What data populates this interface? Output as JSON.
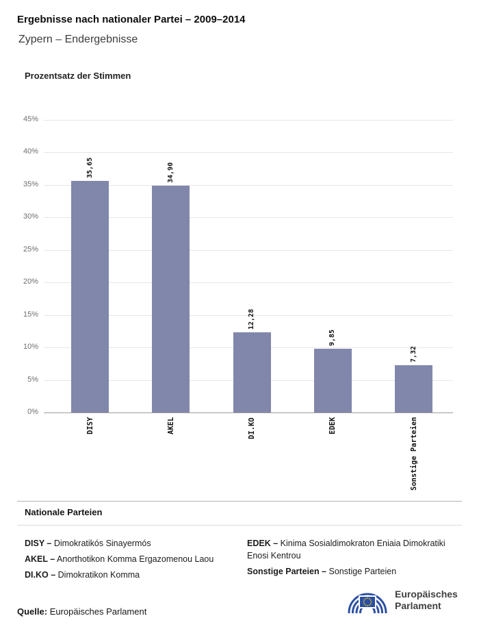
{
  "header": {
    "title": "Ergebnisse nach nationaler Partei – 2009–2014",
    "subtitle": "Zypern – Endergebnisse"
  },
  "chart_data": {
    "type": "bar",
    "title": "Prozentsatz der Stimmen",
    "ylabel": "Prozentsatz der Stimmen",
    "xlabel": "",
    "categories": [
      "DISY",
      "AKEL",
      "DI.KO",
      "EDEK",
      "Sonstige Parteien"
    ],
    "values": [
      35.65,
      34.9,
      12.28,
      9.85,
      7.32
    ],
    "value_labels": [
      "35,65",
      "34,90",
      "12,28",
      "9,85",
      "7,32"
    ],
    "ylim": [
      0,
      45
    ],
    "ytick_step": 5,
    "ytick_labels": [
      "0%",
      "5%",
      "10%",
      "15%",
      "20%",
      "25%",
      "30%",
      "35%",
      "40%",
      "45%"
    ],
    "grid": true,
    "legend_position": "none",
    "bar_color": "#8187ab"
  },
  "legend": {
    "heading": "Nationale Parteien",
    "columns": [
      [
        {
          "abbr": "DISY –",
          "name": "Dimokratikós Sinayermós"
        },
        {
          "abbr": "AKEL –",
          "name": "Anorthotikon Komma Ergazomenou Laou"
        },
        {
          "abbr": "DI.KO –",
          "name": "Dimokratikon Komma"
        }
      ],
      [
        {
          "abbr": "EDEK –",
          "name": "Kinima Sosialdimokraton Eniaia Dimokratiki Enosi Kentrou"
        },
        {
          "abbr": "Sonstige Parteien –",
          "name": "Sonstige Parteien"
        }
      ]
    ]
  },
  "footer": {
    "source_label": "Quelle:",
    "source_text": "Europäisches Parlament",
    "logo": {
      "line1": "Europäisches",
      "line2": "Parlament"
    }
  }
}
